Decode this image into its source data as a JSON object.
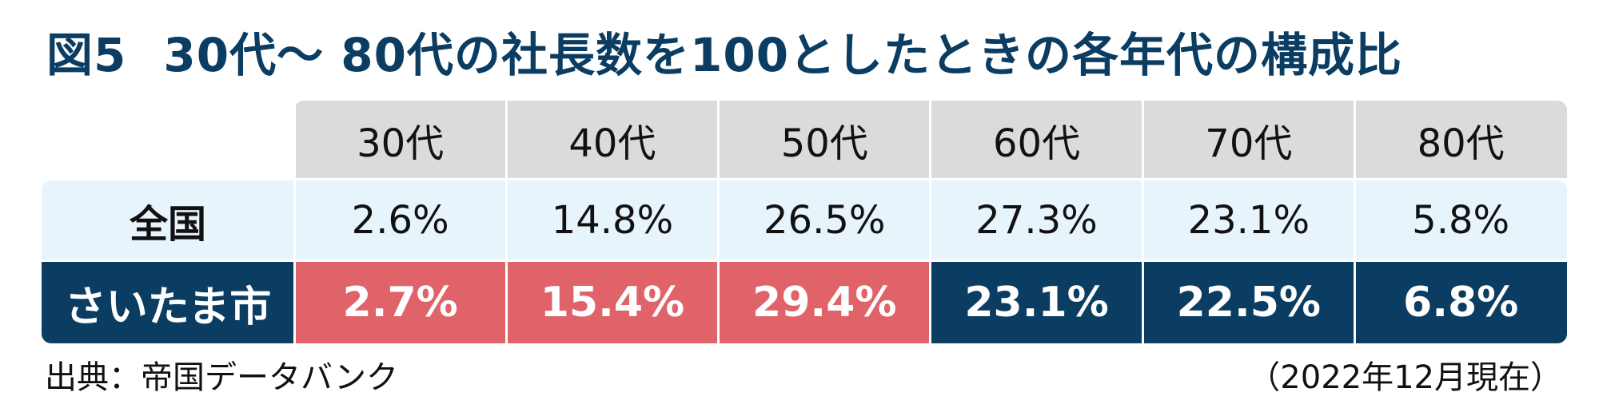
{
  "title": {
    "figure_label": "図5",
    "text": "30代～ 80代の社長数を100としたときの各年代の構成比"
  },
  "chart_data": {
    "type": "table",
    "columns": [
      "30代",
      "40代",
      "50代",
      "60代",
      "70代",
      "80代"
    ],
    "rows": [
      {
        "label": "全国",
        "values": [
          "2.6%",
          "14.8%",
          "26.5%",
          "27.3%",
          "23.1%",
          "5.8%"
        ],
        "highlight": [
          false,
          false,
          false,
          false,
          false,
          false
        ]
      },
      {
        "label": "さいたま市",
        "values": [
          "2.7%",
          "15.4%",
          "29.4%",
          "23.1%",
          "22.5%",
          "6.8%"
        ],
        "highlight": [
          true,
          true,
          true,
          false,
          false,
          false
        ]
      }
    ]
  },
  "footer": {
    "source": "出典：帝国データバンク",
    "as_of": "（2022年12月現在）"
  },
  "colors": {
    "title": "#0b3d63",
    "header_bg": "#dbdbdb",
    "row1_bg": "#e7f4fc",
    "row2_navy": "#0b3d63",
    "row2_highlight": "#e0636a"
  }
}
